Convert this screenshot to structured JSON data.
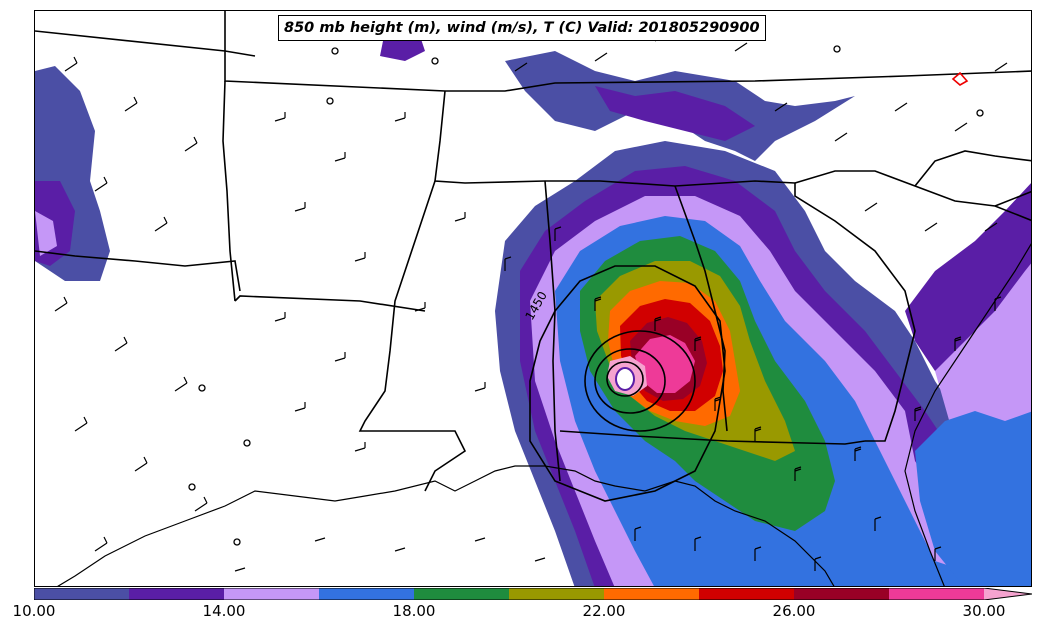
{
  "title": "850 mb height (m), wind (m/s), T (C) Valid: 201805290900",
  "contour_label": "1450",
  "colorbar": {
    "colors": [
      "#4b4fa5",
      "#5a1ea6",
      "#c597f7",
      "#3372e0",
      "#1f8c3e",
      "#999900",
      "#ff6a00",
      "#d10000",
      "#990026",
      "#ee3a98",
      "#f5a3cf"
    ],
    "tick_labels": [
      "10.00",
      "14.00",
      "18.00",
      "22.00",
      "26.00",
      "30.00"
    ],
    "min": 10,
    "max": 32,
    "step": 2
  },
  "colors": {
    "boundary": "#000000",
    "land": "#ffffff"
  }
}
